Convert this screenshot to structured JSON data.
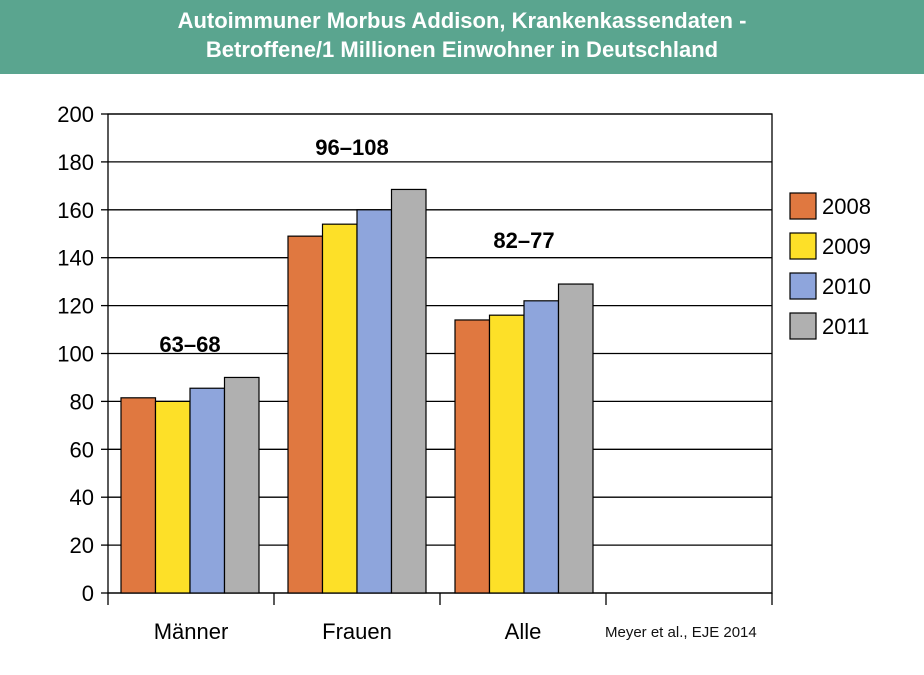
{
  "header": {
    "title_line1": "Autoimmuner Morbus Addison, Krankenkassendaten -",
    "title_line2": "Betroffene/1 Millionen Einwohner in Deutschland"
  },
  "source": "Meyer et al., EJE 2014",
  "colors": {
    "header_bg": "#5aa58f",
    "2008": "#e07840",
    "2009": "#fde028",
    "2010": "#8ea5dc",
    "2011": "#b0b0b0"
  },
  "chart_data": {
    "type": "bar",
    "categories": [
      "Männer",
      "Frauen",
      "Alle"
    ],
    "series": [
      {
        "name": "2008",
        "values": [
          81.5,
          149,
          114
        ],
        "color": "#e07840"
      },
      {
        "name": "2009",
        "values": [
          80,
          154,
          116
        ],
        "color": "#fde028"
      },
      {
        "name": "2010",
        "values": [
          85.5,
          160,
          122
        ],
        "color": "#8ea5dc"
      },
      {
        "name": "2011",
        "values": [
          90,
          168.5,
          129
        ],
        "color": "#b0b0b0"
      }
    ],
    "annotations": [
      "63–68",
      "96–108",
      "82–77"
    ],
    "ylim": [
      0,
      200
    ],
    "yticks": [
      0,
      20,
      40,
      60,
      80,
      100,
      120,
      140,
      160,
      180,
      200
    ],
    "xlabel": "",
    "ylabel": "",
    "grid": true,
    "legend": "right"
  }
}
